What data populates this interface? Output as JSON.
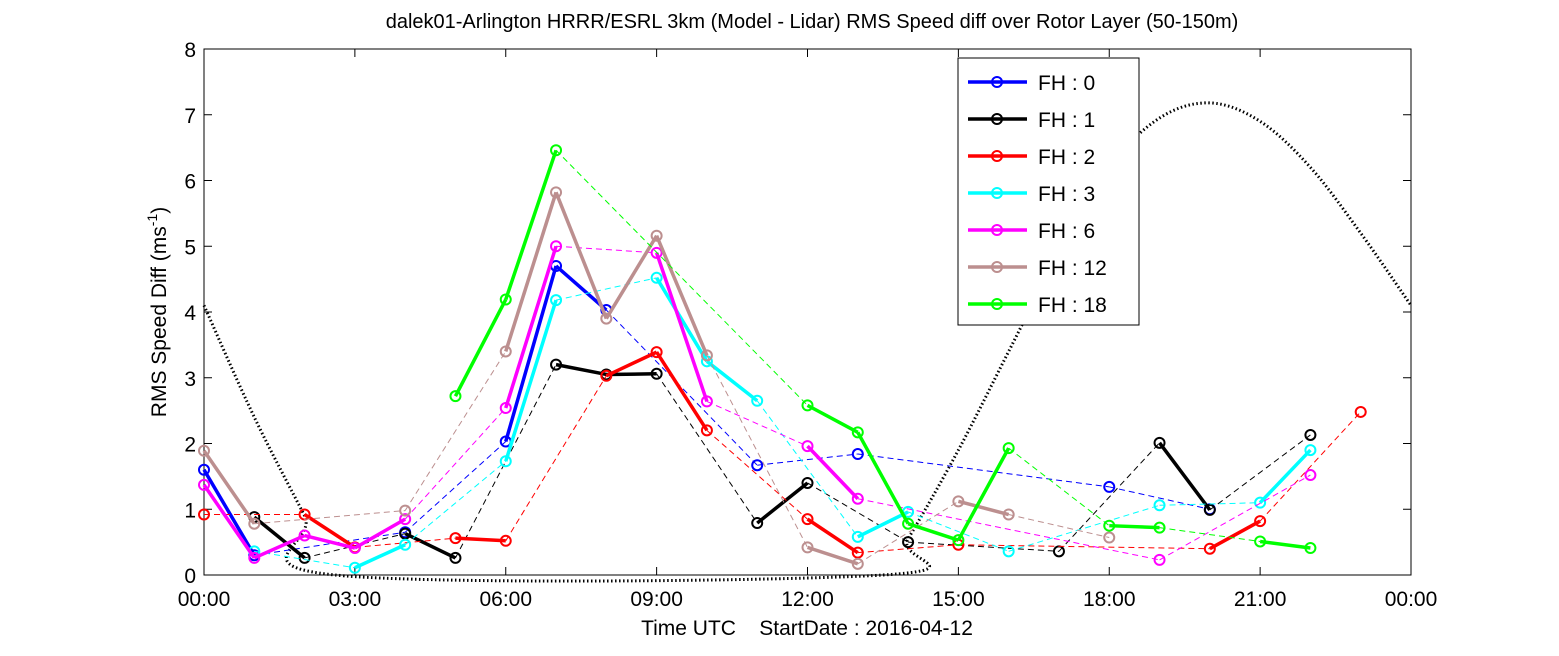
{
  "chart_data": {
    "type": "line",
    "title": "dalek01-Arlington HRRR/ESRL 3km (Model - Lidar) RMS Speed diff over Rotor Layer (50-150m)",
    "xlabel": "Time UTC    StartDate : 2016-04-12",
    "ylabel_main": "RMS Speed Diff (ms",
    "ylabel_sup": "-1",
    "ylabel_end": ")",
    "xlim": [
      0,
      24
    ],
    "ylim": [
      0,
      8
    ],
    "x_ticks": [
      0,
      3,
      6,
      9,
      12,
      15,
      18,
      21,
      24
    ],
    "x_tick_labels": [
      "00:00",
      "03:00",
      "06:00",
      "09:00",
      "12:00",
      "15:00",
      "18:00",
      "21:00",
      "00:00"
    ],
    "y_ticks": [
      0,
      1,
      2,
      3,
      4,
      5,
      6,
      7,
      8
    ],
    "y_tick_labels": [
      "0",
      "1",
      "2",
      "3",
      "4",
      "5",
      "6",
      "7",
      "8"
    ],
    "grid": false,
    "legend_position": "top-right",
    "series": [
      {
        "name": "FH : 0",
        "color": "#0000ff",
        "points": [
          [
            0,
            1.6
          ],
          [
            1,
            0.3
          ],
          [
            4,
            0.65
          ],
          [
            6,
            2.03
          ],
          [
            7,
            4.7
          ],
          [
            8,
            4.03
          ],
          [
            11,
            1.67
          ],
          [
            13,
            1.84
          ],
          [
            18,
            1.34
          ],
          [
            20,
            1.0
          ]
        ]
      },
      {
        "name": "FH : 1",
        "color": "#000000",
        "points": [
          [
            1,
            0.88
          ],
          [
            2,
            0.26
          ],
          [
            4,
            0.63
          ],
          [
            5,
            0.26
          ],
          [
            7,
            3.2
          ],
          [
            8,
            3.05
          ],
          [
            9,
            3.06
          ],
          [
            11,
            0.79
          ],
          [
            12,
            1.4
          ],
          [
            14,
            0.5
          ],
          [
            17,
            0.36
          ],
          [
            19,
            2.01
          ],
          [
            20,
            0.99
          ],
          [
            22,
            2.13
          ]
        ]
      },
      {
        "name": "FH : 2",
        "color": "#ff0000",
        "points": [
          [
            0,
            0.92
          ],
          [
            2,
            0.92
          ],
          [
            3,
            0.42
          ],
          [
            5,
            0.56
          ],
          [
            6,
            0.52
          ],
          [
            8,
            3.03
          ],
          [
            9,
            3.39
          ],
          [
            10,
            2.2
          ],
          [
            12,
            0.85
          ],
          [
            13,
            0.34
          ],
          [
            15,
            0.46
          ],
          [
            20,
            0.4
          ],
          [
            21,
            0.82
          ],
          [
            23,
            2.48
          ]
        ]
      },
      {
        "name": "FH : 3",
        "color": "#00ffff",
        "points": [
          [
            1,
            0.36
          ],
          [
            3,
            0.11
          ],
          [
            4,
            0.46
          ],
          [
            6,
            1.73
          ],
          [
            7,
            4.18
          ],
          [
            9,
            4.52
          ],
          [
            10,
            3.25
          ],
          [
            11,
            2.65
          ],
          [
            13,
            0.58
          ],
          [
            14,
            0.96
          ],
          [
            16,
            0.36
          ],
          [
            19,
            1.06
          ],
          [
            21,
            1.1
          ],
          [
            22,
            1.9
          ]
        ]
      },
      {
        "name": "FH : 6",
        "color": "#ff00ff",
        "points": [
          [
            0,
            1.37
          ],
          [
            1,
            0.26
          ],
          [
            2,
            0.6
          ],
          [
            3,
            0.41
          ],
          [
            4,
            0.85
          ],
          [
            6,
            2.54
          ],
          [
            7,
            5.0
          ],
          [
            9,
            4.9
          ],
          [
            10,
            2.64
          ],
          [
            12,
            1.96
          ],
          [
            13,
            1.16
          ],
          [
            19,
            0.23
          ],
          [
            22,
            1.52
          ]
        ]
      },
      {
        "name": "FH : 12",
        "color": "#bc8f8f",
        "points": [
          [
            0,
            1.89
          ],
          [
            1,
            0.78
          ],
          [
            4,
            0.98
          ],
          [
            6,
            3.4
          ],
          [
            7,
            5.82
          ],
          [
            8,
            3.9
          ],
          [
            9,
            5.16
          ],
          [
            10,
            3.34
          ],
          [
            12,
            0.42
          ],
          [
            13,
            0.17
          ],
          [
            15,
            1.12
          ],
          [
            16,
            0.92
          ],
          [
            18,
            0.57
          ]
        ]
      },
      {
        "name": "FH : 18",
        "color": "#00ff00",
        "points": [
          [
            5,
            2.72
          ],
          [
            6,
            4.19
          ],
          [
            7,
            6.46
          ],
          [
            12,
            2.58
          ],
          [
            13,
            2.17
          ],
          [
            14,
            0.78
          ],
          [
            15,
            0.53
          ],
          [
            16,
            1.93
          ],
          [
            18,
            0.75
          ],
          [
            19,
            0.72
          ],
          [
            21,
            0.51
          ],
          [
            22,
            0.41
          ]
        ]
      }
    ],
    "reference_curve": {
      "style": "dotted",
      "color": "#000000",
      "points": [
        [
          0,
          4.1
        ],
        [
          1,
          2.4
        ],
        [
          2,
          0.9
        ],
        [
          2.6,
          0.0
        ],
        [
          13.5,
          0.0
        ],
        [
          14,
          0.55
        ],
        [
          15,
          1.9
        ],
        [
          16,
          3.4
        ],
        [
          17,
          4.9
        ],
        [
          18,
          6.2
        ],
        [
          19,
          6.95
        ],
        [
          20,
          7.18
        ],
        [
          21,
          6.9
        ],
        [
          22,
          6.2
        ],
        [
          23,
          5.2
        ],
        [
          24,
          4.1
        ]
      ]
    }
  }
}
